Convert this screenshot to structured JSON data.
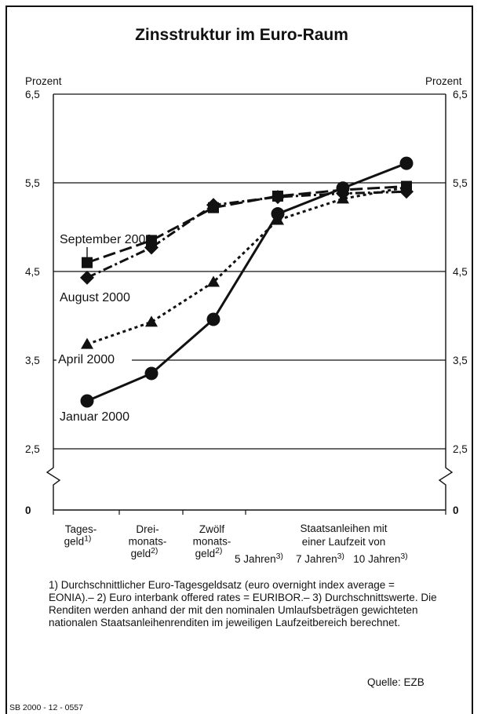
{
  "chart_data": {
    "type": "line",
    "title": "Zinsstruktur im Euro-Raum",
    "ylabel_left": "Prozent",
    "ylabel_right": "Prozent",
    "yticks": [
      "6,5",
      "5,5",
      "4,5",
      "3,5",
      "2,5",
      "0"
    ],
    "ylim": [
      2.5,
      6.5
    ],
    "axis_break": true,
    "grid": true,
    "categories": [
      {
        "lines": [
          "Tages-",
          "geld"
        ],
        "sup": "1)"
      },
      {
        "lines": [
          "Drei-",
          "monats-",
          "geld"
        ],
        "sup": "2)"
      },
      {
        "lines": [
          "Zwölf",
          "monats-",
          "geld"
        ],
        "sup": "2)"
      },
      {
        "lines": [
          "5 Jahren"
        ],
        "sup": "3)"
      },
      {
        "lines": [
          "7 Jahren"
        ],
        "sup": "3)"
      },
      {
        "lines": [
          "10 Jahren"
        ],
        "sup": "3)"
      }
    ],
    "group_label": [
      "Staatsanleihen mit",
      "einer Laufzeit von"
    ],
    "series": [
      {
        "name": "September 2000",
        "marker": "square",
        "dash": "long",
        "values": [
          4.6,
          4.85,
          5.22,
          5.35,
          5.42,
          5.46
        ]
      },
      {
        "name": "August 2000",
        "marker": "diamond",
        "dash": "dashdot",
        "values": [
          4.43,
          4.77,
          5.25,
          5.34,
          5.38,
          5.4
        ]
      },
      {
        "name": "April 2000",
        "marker": "triangle",
        "dash": "dotted",
        "values": [
          3.68,
          3.93,
          4.38,
          5.08,
          5.32,
          5.45
        ]
      },
      {
        "name": "Januar 2000",
        "marker": "circle",
        "dash": "solid",
        "values": [
          3.04,
          3.35,
          3.96,
          5.15,
          5.44,
          5.72
        ]
      }
    ]
  },
  "footnote": "1) Durchschnittlicher Euro-Tagesgeldsatz (euro overnight index average = EONIA).– 2) Euro interbank offered rates = EURIBOR.– 3) Durchschnittswerte. Die Renditen werden anhand der mit den nominalen Umlaufsbeträgen gewichteten nationalen Staatsanleihenrenditen im jeweiligen Laufzeitbereich berechnet.",
  "source": "Quelle: EZB",
  "code": "SB 2000 - 12 - 0557"
}
